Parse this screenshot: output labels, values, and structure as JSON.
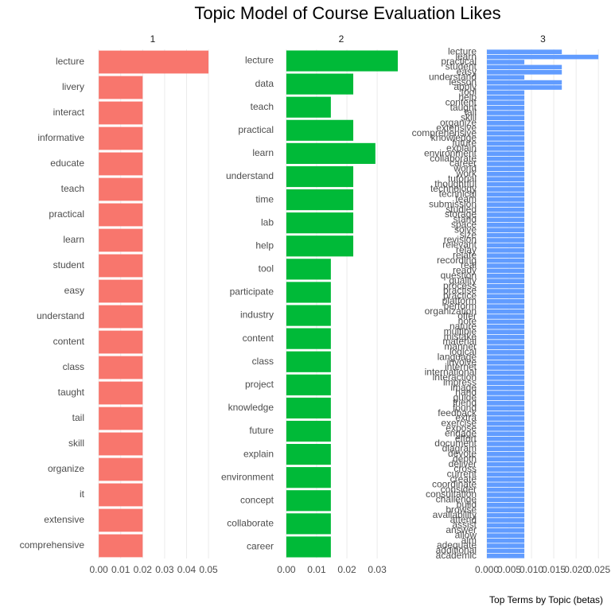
{
  "chart_data": {
    "type": "bar",
    "title": "Topic Model of Course Evaluation Likes",
    "caption": "Top Terms by Topic (betas)",
    "grid": true,
    "facets": [
      {
        "name": "1",
        "color": "#f8766d",
        "categories": [
          "lecture",
          "livery",
          "interact",
          "informative",
          "educate",
          "teach",
          "practical",
          "learn",
          "student",
          "easy",
          "understand",
          "content",
          "class",
          "taught",
          "tail",
          "skill",
          "organize",
          "it",
          "extensive",
          "comprehensive"
        ],
        "values": [
          0.05,
          0.02,
          0.02,
          0.02,
          0.02,
          0.02,
          0.02,
          0.02,
          0.02,
          0.02,
          0.02,
          0.02,
          0.02,
          0.02,
          0.02,
          0.02,
          0.02,
          0.02,
          0.02,
          0.02
        ],
        "xlim": [
          -0.0044,
          0.0536
        ],
        "xticks": [
          {
            "value": 0,
            "label": "0.00"
          },
          {
            "value": 0.01,
            "label": "0.01"
          },
          {
            "value": 0.02,
            "label": "0.02"
          },
          {
            "value": 0.03,
            "label": "0.03"
          },
          {
            "value": 0.04,
            "label": "0.04"
          },
          {
            "value": 0.05,
            "label": "0.05"
          }
        ]
      },
      {
        "name": "2",
        "color": "#00ba38",
        "categories": [
          "lecture",
          "data",
          "teach",
          "practical",
          "learn",
          "understand",
          "time",
          "lab",
          "help",
          "tool",
          "participate",
          "industry",
          "content",
          "class",
          "project",
          "knowledge",
          "future",
          "explain",
          "environment",
          "concept",
          "collaborate",
          "career"
        ],
        "values": [
          0.0368,
          0.0221,
          0.0147,
          0.0221,
          0.0294,
          0.0221,
          0.0221,
          0.0221,
          0.0221,
          0.0147,
          0.0147,
          0.0147,
          0.0147,
          0.0147,
          0.0147,
          0.0147,
          0.0147,
          0.0147,
          0.0147,
          0.0147,
          0.0147,
          0.0147
        ],
        "xlim": [
          -0.0026,
          0.0389
        ],
        "xticks": [
          {
            "value": 0,
            "label": "0.00"
          },
          {
            "value": 0.01,
            "label": "0.01"
          },
          {
            "value": 0.02,
            "label": "0.02"
          },
          {
            "value": 0.03,
            "label": "0.03"
          }
        ]
      },
      {
        "name": "3",
        "color": "#619cff",
        "categories": [
          "lecture",
          "learn",
          "practical",
          "student",
          "easy",
          "understand",
          "lesson",
          "apply",
          "tool",
          "help",
          "content",
          "taught",
          "tail",
          "skill",
          "organize",
          "extensive",
          "comprehensive",
          "knowledge",
          "future",
          "explain",
          "environment",
          "collaborate",
          "career",
          "world",
          "work",
          "tutorial",
          "thoughtful",
          "technology",
          "technical",
          "team",
          "submission",
          "studied",
          "storage",
          "stand",
          "space",
          "solve",
          "size",
          "revision",
          "relevant",
          "relay",
          "relate",
          "recording",
          "real",
          "ready",
          "question",
          "quality",
          "process",
          "practise",
          "practice",
          "platform",
          "perform",
          "organization",
          "offer",
          "note",
          "nature",
          "multiple",
          "mistake",
          "material",
          "manner",
          "logical",
          "language",
          "involve",
          "internet",
          "international",
          "interaction",
          "impress",
          "image",
          "hand",
          "guide",
          "friend",
          "found",
          "feedback",
          "extra",
          "exercise",
          "expose",
          "engage",
          "effort",
          "document",
          "diagram",
          "devote",
          "depth",
          "deliver",
          "cross",
          "current",
          "create",
          "coordinate",
          "consider",
          "consultation",
          "challenge",
          "build",
          "browse",
          "availability",
          "attend",
          "assist",
          "answer",
          "allow",
          "aim",
          "adequate",
          "additional",
          "academic"
        ],
        "values": [
          0.0168,
          0.025,
          0.0084,
          0.0168,
          0.0168,
          0.0084,
          0.0168,
          0.0168,
          0.0084,
          0.0084,
          0.0084,
          0.0084,
          0.0084,
          0.0084,
          0.0084,
          0.0084,
          0.0084,
          0.0084,
          0.0084,
          0.0084,
          0.0084,
          0.0084,
          0.0084,
          0.0084,
          0.0084,
          0.0084,
          0.0084,
          0.0084,
          0.0084,
          0.0084,
          0.0084,
          0.0084,
          0.0084,
          0.0084,
          0.0084,
          0.0084,
          0.0084,
          0.0084,
          0.0084,
          0.0084,
          0.0084,
          0.0084,
          0.0084,
          0.0084,
          0.0084,
          0.0084,
          0.0084,
          0.0084,
          0.0084,
          0.0084,
          0.0084,
          0.0084,
          0.0084,
          0.0084,
          0.0084,
          0.0084,
          0.0084,
          0.0084,
          0.0084,
          0.0084,
          0.0084,
          0.0084,
          0.0084,
          0.0084,
          0.0084,
          0.0084,
          0.0084,
          0.0084,
          0.0084,
          0.0084,
          0.0084,
          0.0084,
          0.0084,
          0.0084,
          0.0084,
          0.0084,
          0.0084,
          0.0084,
          0.0084,
          0.0084,
          0.0084,
          0.0084,
          0.0084,
          0.0084,
          0.0084,
          0.0084,
          0.0084,
          0.0084,
          0.0084,
          0.0084,
          0.0084,
          0.0084,
          0.0084,
          0.0084,
          0.0084,
          0.0084,
          0.0084,
          0.0084,
          0.0084,
          0.0084
        ],
        "xlim": [
          -0.00125,
          0.0264
        ],
        "xticks": [
          {
            "value": 0,
            "label": "0.000"
          },
          {
            "value": 0.005,
            "label": "0.005"
          },
          {
            "value": 0.01,
            "label": "0.010"
          },
          {
            "value": 0.015,
            "label": "0.015"
          },
          {
            "value": 0.02,
            "label": "0.020"
          },
          {
            "value": 0.025,
            "label": "0.025"
          }
        ]
      }
    ]
  }
}
